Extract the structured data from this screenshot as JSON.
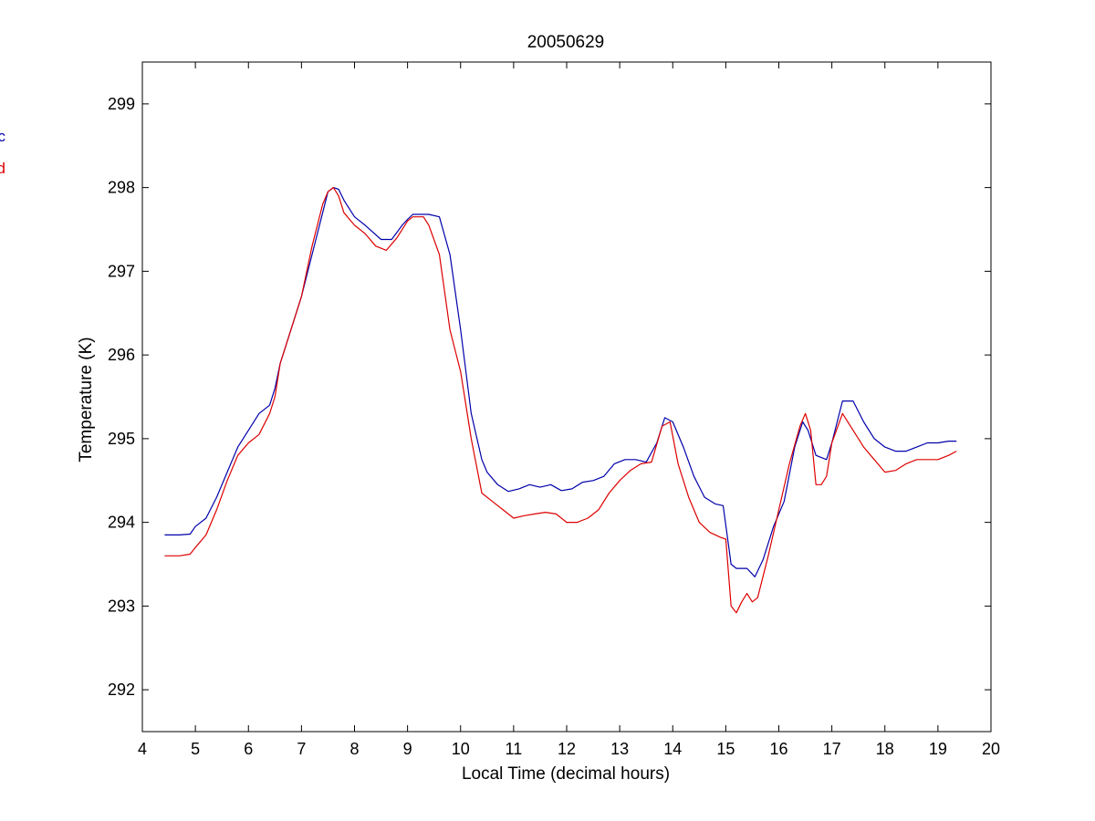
{
  "chart_data": {
    "type": "line",
    "title": "20050629",
    "xlabel": "Local Time (decimal hours)",
    "ylabel": "Temperature (K)",
    "xlim": [
      4,
      20
    ],
    "ylim": [
      291.5,
      299.5
    ],
    "xticks": [
      "4",
      "5",
      "6",
      "7",
      "8",
      "9",
      "10",
      "11",
      "12",
      "13",
      "14",
      "15",
      "16",
      "17",
      "18",
      "19",
      "20"
    ],
    "yticks": [
      "292",
      "293",
      "294",
      "295",
      "296",
      "297",
      "298",
      "299"
    ],
    "grid": false,
    "legend_position": "left, partially cut off",
    "series": [
      {
        "name": "c",
        "color": "#0000aa",
        "x": [
          4.42,
          4.7,
          4.9,
          5.0,
          5.2,
          5.4,
          5.6,
          5.8,
          6.0,
          6.2,
          6.4,
          6.5,
          6.6,
          6.8,
          7.0,
          7.2,
          7.4,
          7.5,
          7.6,
          7.7,
          7.8,
          8.0,
          8.2,
          8.5,
          8.7,
          8.9,
          9.0,
          9.1,
          9.3,
          9.4,
          9.6,
          9.8,
          10.0,
          10.2,
          10.4,
          10.5,
          10.7,
          10.9,
          11.1,
          11.3,
          11.5,
          11.7,
          11.9,
          12.1,
          12.3,
          12.5,
          12.7,
          12.9,
          13.1,
          13.3,
          13.5,
          13.7,
          13.85,
          14.0,
          14.2,
          14.4,
          14.6,
          14.8,
          14.95,
          15.1,
          15.2,
          15.4,
          15.55,
          15.7,
          15.9,
          16.1,
          16.3,
          16.45,
          16.55,
          16.7,
          16.9,
          17.0,
          17.2,
          17.4,
          17.6,
          17.8,
          18.0,
          18.2,
          18.4,
          18.6,
          18.8,
          19.0,
          19.2,
          19.35
        ],
        "y": [
          293.85,
          293.85,
          293.86,
          293.95,
          294.05,
          294.3,
          294.6,
          294.9,
          295.1,
          295.3,
          295.4,
          295.6,
          295.9,
          296.3,
          296.7,
          297.2,
          297.7,
          297.95,
          298.0,
          297.98,
          297.85,
          297.65,
          297.55,
          297.38,
          297.38,
          297.55,
          297.62,
          297.68,
          297.68,
          297.68,
          297.65,
          297.2,
          296.3,
          295.3,
          294.75,
          294.6,
          294.45,
          294.37,
          294.4,
          294.45,
          294.42,
          294.45,
          294.38,
          294.4,
          294.48,
          294.5,
          294.55,
          294.7,
          294.75,
          294.75,
          294.72,
          294.95,
          295.25,
          295.2,
          294.9,
          294.55,
          294.3,
          294.22,
          294.2,
          293.5,
          293.45,
          293.45,
          293.35,
          293.55,
          293.95,
          294.25,
          294.9,
          295.2,
          295.1,
          294.8,
          294.75,
          294.95,
          295.45,
          295.45,
          295.2,
          295.0,
          294.9,
          294.85,
          294.85,
          294.9,
          294.95,
          294.95,
          294.97,
          294.97
        ]
      },
      {
        "name": "d",
        "color": "#dd0000",
        "x": [
          4.42,
          4.7,
          4.9,
          5.0,
          5.2,
          5.4,
          5.6,
          5.8,
          6.0,
          6.2,
          6.4,
          6.5,
          6.6,
          6.8,
          7.0,
          7.2,
          7.4,
          7.5,
          7.6,
          7.7,
          7.8,
          8.0,
          8.2,
          8.4,
          8.6,
          8.8,
          9.0,
          9.1,
          9.3,
          9.4,
          9.6,
          9.8,
          10.0,
          10.2,
          10.4,
          10.6,
          10.8,
          11.0,
          11.2,
          11.4,
          11.6,
          11.8,
          12.0,
          12.2,
          12.4,
          12.6,
          12.8,
          13.0,
          13.2,
          13.4,
          13.6,
          13.8,
          13.95,
          14.1,
          14.3,
          14.5,
          14.7,
          14.9,
          15.0,
          15.1,
          15.2,
          15.3,
          15.4,
          15.5,
          15.6,
          15.8,
          16.0,
          16.2,
          16.4,
          16.5,
          16.6,
          16.7,
          16.8,
          16.9,
          17.0,
          17.2,
          17.4,
          17.6,
          17.8,
          18.0,
          18.2,
          18.4,
          18.6,
          18.8,
          19.0,
          19.2,
          19.35
        ],
        "y": [
          293.6,
          293.6,
          293.62,
          293.7,
          293.85,
          294.15,
          294.5,
          294.8,
          294.95,
          295.05,
          295.3,
          295.5,
          295.9,
          296.3,
          296.7,
          297.3,
          297.8,
          297.95,
          298.0,
          297.9,
          297.7,
          297.55,
          297.45,
          297.3,
          297.25,
          297.4,
          297.6,
          297.65,
          297.65,
          297.55,
          297.2,
          296.3,
          295.8,
          295.0,
          294.35,
          294.25,
          294.15,
          294.05,
          294.08,
          294.1,
          294.12,
          294.1,
          294.0,
          294.0,
          294.05,
          294.15,
          294.35,
          294.5,
          294.62,
          294.7,
          294.72,
          295.15,
          295.2,
          294.7,
          294.3,
          294.0,
          293.88,
          293.82,
          293.8,
          293.0,
          292.92,
          293.05,
          293.15,
          293.05,
          293.1,
          293.6,
          294.15,
          294.7,
          295.15,
          295.3,
          295.1,
          294.45,
          294.45,
          294.55,
          294.95,
          295.3,
          295.1,
          294.9,
          294.75,
          294.6,
          294.62,
          294.7,
          294.75,
          294.75,
          294.75,
          294.8,
          294.85
        ]
      }
    ]
  }
}
